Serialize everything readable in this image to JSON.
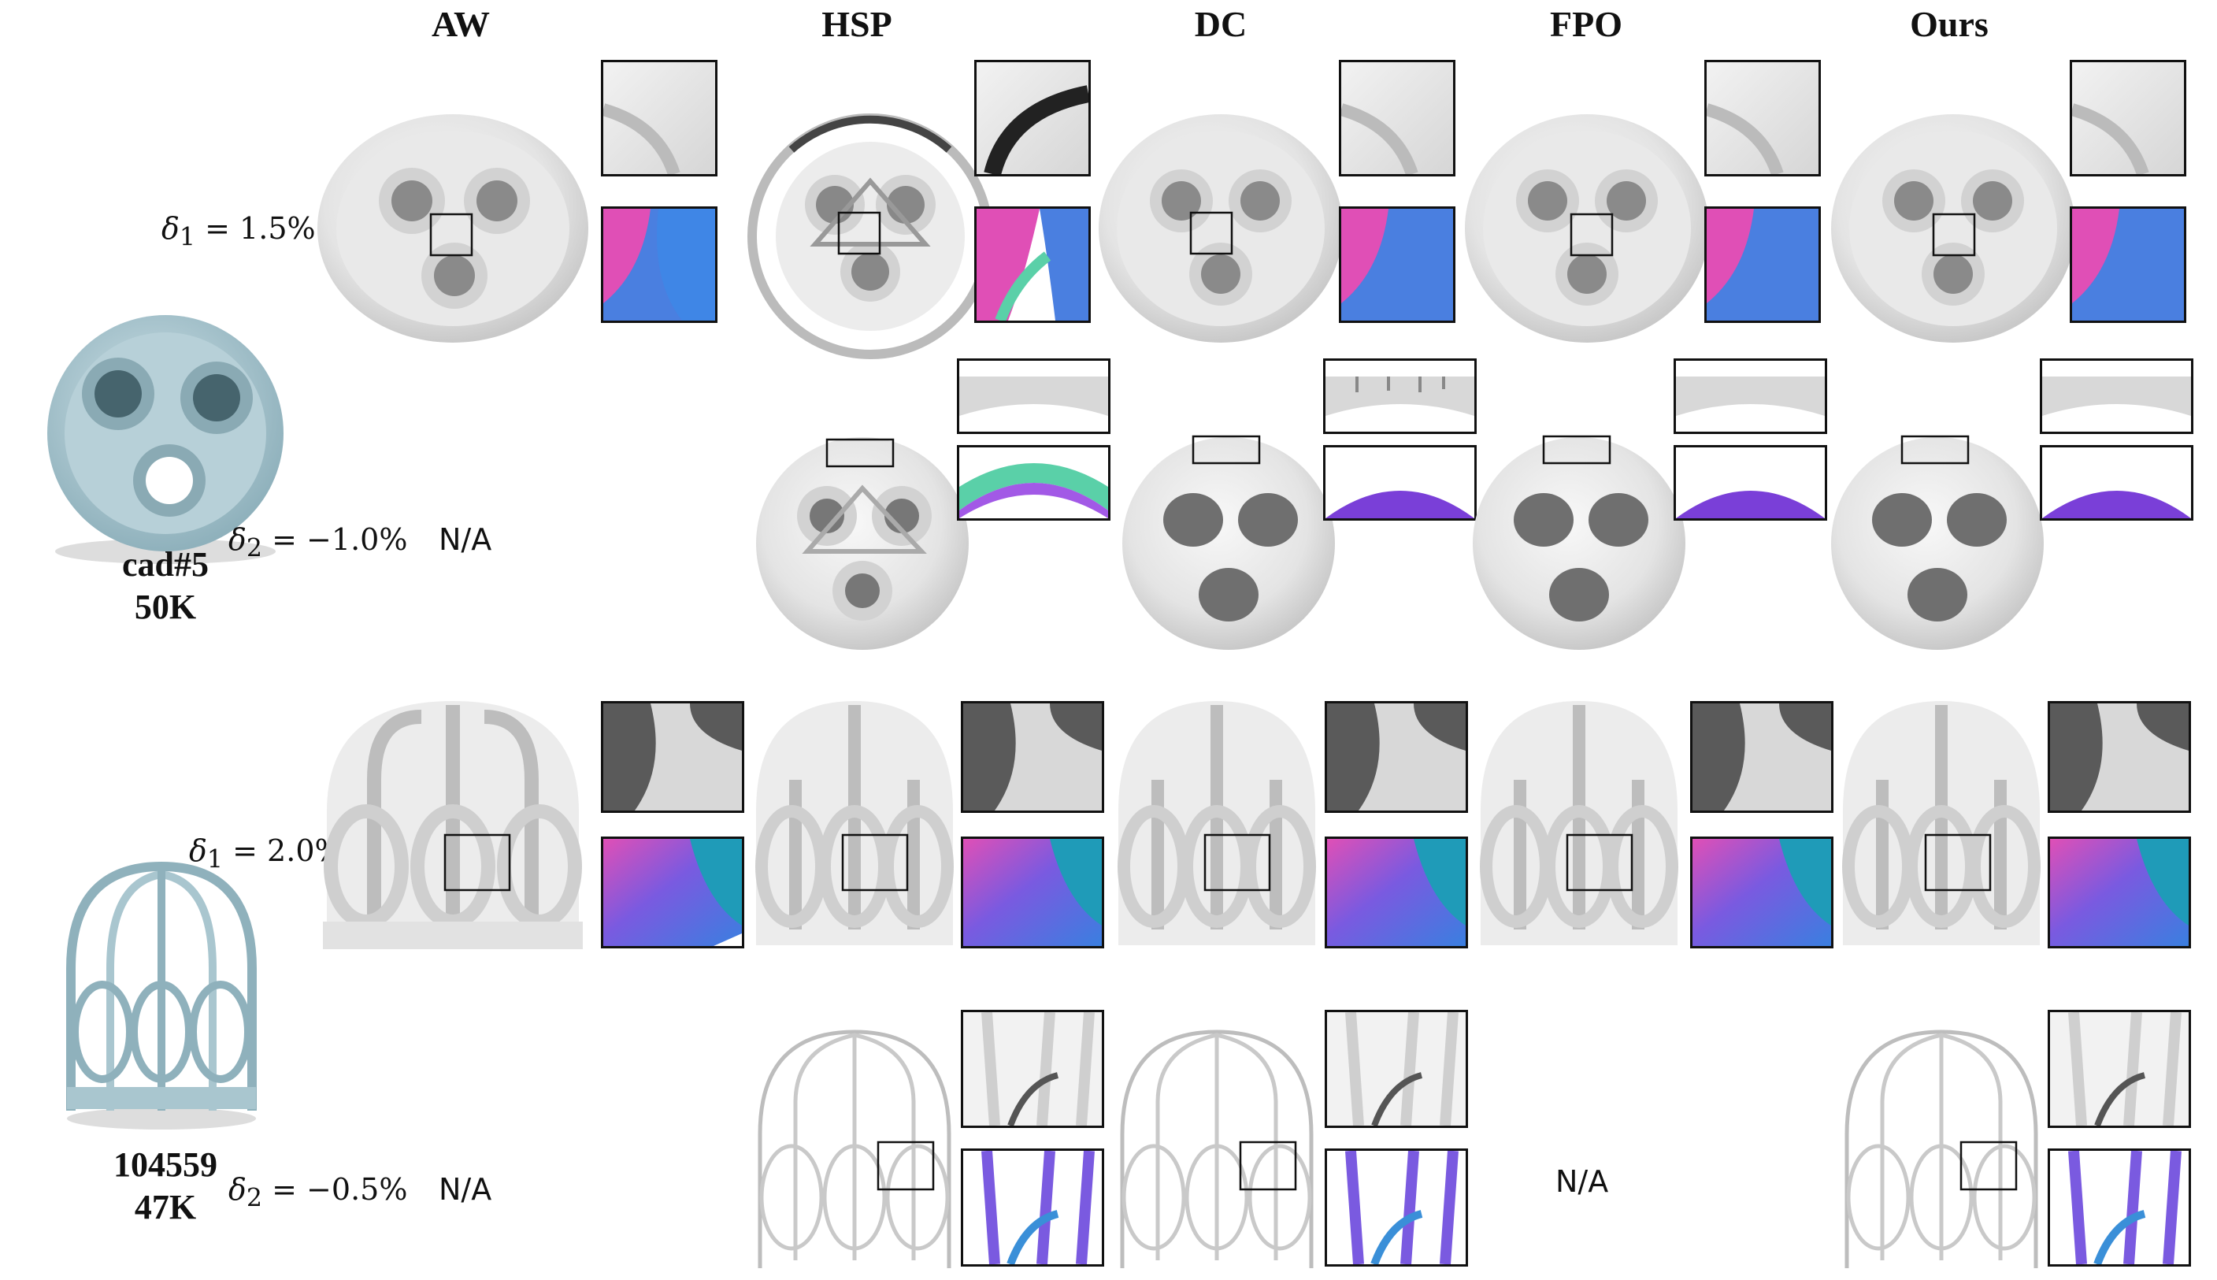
{
  "columns": [
    "AW",
    "HSP",
    "DC",
    "FPO",
    "Ours"
  ],
  "models": [
    {
      "name": "cad#5",
      "faces": "50K",
      "rows": [
        {
          "delta_sym": "δ",
          "delta_sub": "1",
          "delta_val": "= 1.5%",
          "aw": ""
        },
        {
          "delta_sym": "δ",
          "delta_sub": "2",
          "delta_val": "= −1.0%",
          "aw": "N/A"
        }
      ]
    },
    {
      "name": "104559",
      "faces": "47K",
      "rows": [
        {
          "delta_sym": "δ",
          "delta_sub": "1",
          "delta_val": "= 2.0%",
          "aw": ""
        },
        {
          "delta_sym": "δ",
          "delta_sub": "2",
          "delta_val": "= −0.5%",
          "aw": "N/A",
          "fpo": "N/A"
        }
      ]
    }
  ],
  "colors": {
    "reference_mesh": "#a9c6cf",
    "render_gray": "#e4e4e4",
    "normal_blue": "#4a7fe0",
    "normal_pink": "#e04fb6",
    "normal_purple": "#7a3fd8"
  }
}
